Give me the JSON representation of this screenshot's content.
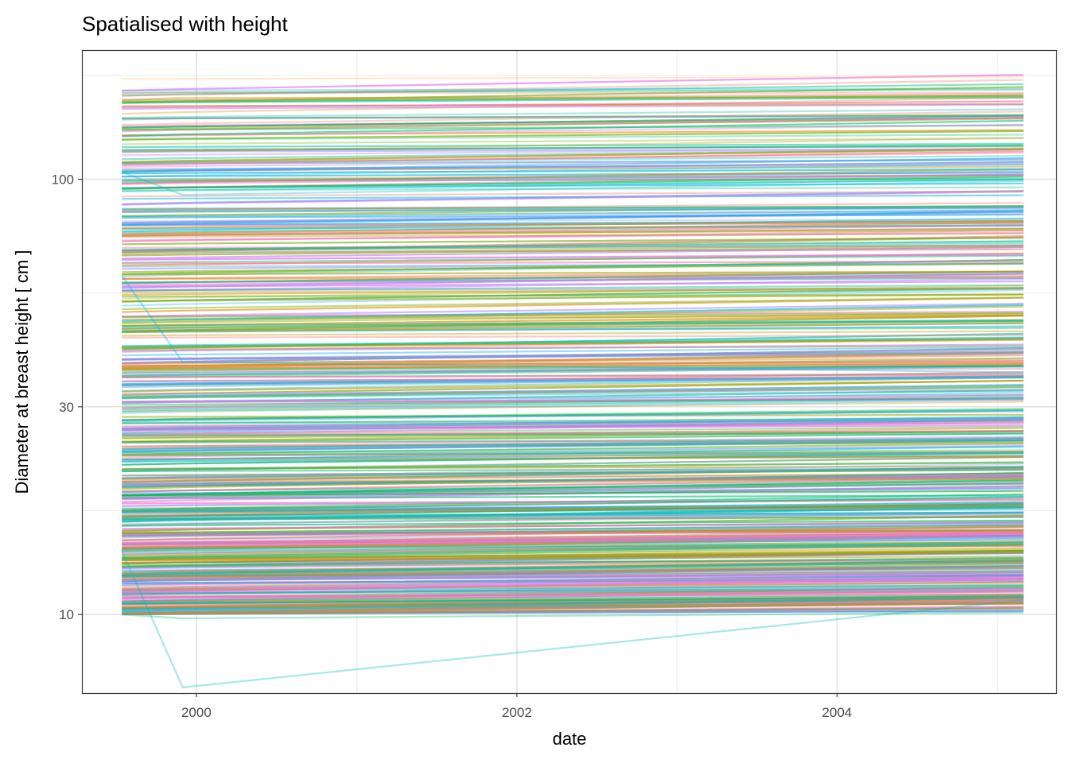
{
  "chart_data": {
    "type": "line",
    "title": "Spatialised with height",
    "xlabel": "date",
    "ylabel": "Diameter at breast height [ cm ]",
    "x_ticks": [
      "2000",
      "2002",
      "2004"
    ],
    "y_ticks": [
      "10",
      "30",
      "100"
    ],
    "y_scale": "log10",
    "xlim": [
      "1999-04-15",
      "2005-05-15"
    ],
    "ylim": [
      6.6,
      198
    ],
    "grid": true,
    "legend": "none",
    "measurement_dates": [
      "1999-07-15",
      "1999-12-01",
      "2005-03-01"
    ],
    "series_count": 520,
    "dbh_min": 10,
    "dbh_max": 160,
    "series": [
      {
        "values": [
          170,
          170,
          172
        ]
      },
      {
        "values": [
          157,
          158,
          158
        ]
      },
      {
        "values": [
          152,
          154,
          154
        ]
      },
      {
        "values": [
          137,
          138,
          140
        ]
      },
      {
        "values": [
          104,
          92,
          99
        ]
      },
      {
        "values": [
          60,
          38,
          36
        ]
      },
      {
        "values": [
          14,
          6.8,
          10.8
        ]
      },
      {
        "values": [
          10,
          9.8,
          10.1
        ]
      }
    ],
    "palette": [
      "#F8766D",
      "#E58700",
      "#C99800",
      "#A3A500",
      "#6BB100",
      "#00BA38",
      "#00BF7D",
      "#00C0AF",
      "#00BCD8",
      "#00B0F6",
      "#619CFF",
      "#B983FF",
      "#E76BF3",
      "#FD61D1",
      "#FF67A4"
    ]
  }
}
